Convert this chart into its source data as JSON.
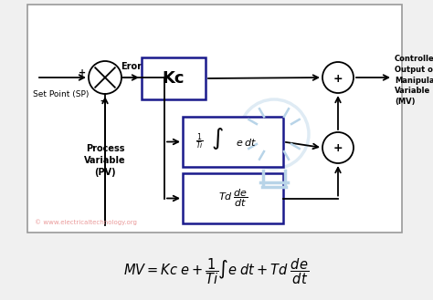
{
  "bg_color": "#f0f0f0",
  "diagram_bg": "#ffffff",
  "line_color": "#000000",
  "box_border_color": "#1a1a8c",
  "watermark_color": "#b8d4e8",
  "copyright_color": "#e89090",
  "copyright_text": "© www.electricaltechnology.org",
  "setpoint_label": "Set Point (SP)",
  "pv_label": "Process\nVariable\n(PV)",
  "error_label": "Eror",
  "kc_label": "Kc",
  "output_label": "Controller\nOutput or\nManipulated\nVariable\n(MV)"
}
